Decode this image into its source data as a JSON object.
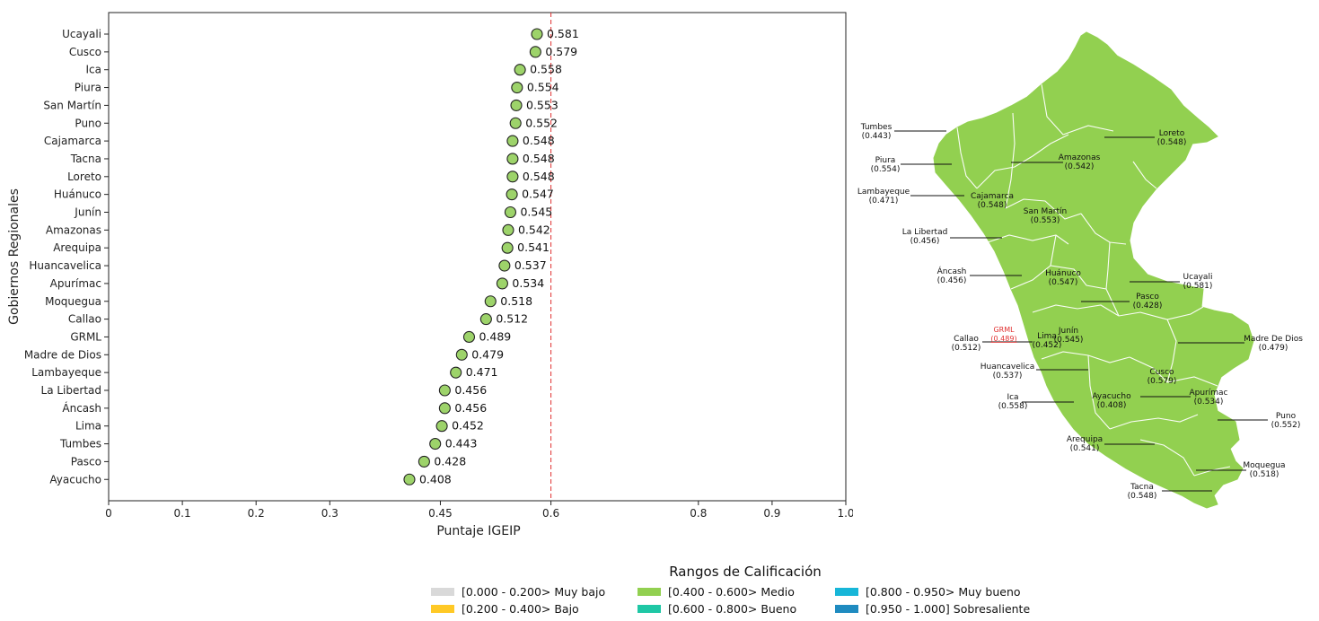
{
  "chart_data": [
    {
      "type": "scatter",
      "orientation": "horizontal",
      "xlabel": "Puntaje IGEIP",
      "ylabel": "Gobiernos Regionales",
      "xlim": [
        0,
        1.0
      ],
      "x_ticks": [
        "0",
        "0.1",
        "0.2",
        "0.3",
        "0.45",
        "0.6",
        "0.8",
        "0.9",
        "1.0"
      ],
      "x_tick_values": [
        0,
        0.1,
        0.2,
        0.3,
        0.45,
        0.6,
        0.8,
        0.9,
        1.0
      ],
      "reference_line": 0.6,
      "reference_line_style": "dashed red",
      "marker_color": "#9DD36A",
      "categories": [
        "Ucayali",
        "Cusco",
        "Ica",
        "Piura",
        "San Martín",
        "Puno",
        "Cajamarca",
        "Tacna",
        "Loreto",
        "Huánuco",
        "Junín",
        "Amazonas",
        "Arequipa",
        "Huancavelica",
        "Apurímac",
        "Moquegua",
        "Callao",
        "GRML",
        "Madre de Dios",
        "Lambayeque",
        "La Libertad",
        "Áncash",
        "Lima",
        "Tumbes",
        "Pasco",
        "Ayacucho"
      ],
      "values": [
        0.581,
        0.579,
        0.558,
        0.554,
        0.553,
        0.552,
        0.548,
        0.548,
        0.548,
        0.547,
        0.545,
        0.542,
        0.541,
        0.537,
        0.534,
        0.518,
        0.512,
        0.489,
        0.479,
        0.471,
        0.456,
        0.456,
        0.452,
        0.443,
        0.428,
        0.408
      ],
      "value_labels": [
        "0.581",
        "0.579",
        "0.558",
        "0.554",
        "0.553",
        "0.552",
        "0.548",
        "0.548",
        "0.548",
        "0.547",
        "0.545",
        "0.542",
        "0.541",
        "0.537",
        "0.534",
        "0.518",
        "0.512",
        "0.489",
        "0.479",
        "0.471",
        "0.456",
        "0.456",
        "0.452",
        "0.443",
        "0.428",
        "0.408"
      ]
    }
  ],
  "map": {
    "fill_color": "#92D050",
    "border_color": "#ffffff",
    "labels": [
      {
        "name": "Tumbes",
        "value": "(0.443)"
      },
      {
        "name": "Piura",
        "value": "(0.554)"
      },
      {
        "name": "Lambayeque",
        "value": "(0.471)"
      },
      {
        "name": "La Libertad",
        "value": "(0.456)"
      },
      {
        "name": "Áncash",
        "value": "(0.456)"
      },
      {
        "name": "Callao",
        "value": "(0.512)"
      },
      {
        "name": "GRML",
        "value": "(0.489)",
        "color": "#e03030"
      },
      {
        "name": "Lima",
        "value": "(0.452)"
      },
      {
        "name": "Huancavelica",
        "value": "(0.537)"
      },
      {
        "name": "Ica",
        "value": "(0.558)"
      },
      {
        "name": "Loreto",
        "value": "(0.548)"
      },
      {
        "name": "Amazonas",
        "value": "(0.542)"
      },
      {
        "name": "Cajamarca",
        "value": "(0.548)"
      },
      {
        "name": "San Martín",
        "value": "(0.553)"
      },
      {
        "name": "Huánuco",
        "value": "(0.547)"
      },
      {
        "name": "Ucayali",
        "value": "(0.581)"
      },
      {
        "name": "Pasco",
        "value": "(0.428)"
      },
      {
        "name": "Junín",
        "value": "(0.545)"
      },
      {
        "name": "Madre De Dios",
        "value": "(0.479)"
      },
      {
        "name": "Cusco",
        "value": "(0.579)"
      },
      {
        "name": "Apurímac",
        "value": "(0.534)"
      },
      {
        "name": "Ayacucho",
        "value": "(0.408)"
      },
      {
        "name": "Puno",
        "value": "(0.552)"
      },
      {
        "name": "Arequipa",
        "value": "(0.541)"
      },
      {
        "name": "Moquegua",
        "value": "(0.518)"
      },
      {
        "name": "Tacna",
        "value": "(0.548)"
      }
    ]
  },
  "legend": {
    "title": "Rangos de Calificación",
    "items": [
      {
        "label": "[0.000 - 0.200> Muy bajo",
        "color": "#D9D9D9"
      },
      {
        "label": "[0.400 - 0.600> Medio",
        "color": "#92D050"
      },
      {
        "label": "[0.800 - 0.950> Muy bueno",
        "color": "#17B6D8"
      },
      {
        "label": "[0.200 - 0.400> Bajo",
        "color": "#FFC926"
      },
      {
        "label": "[0.600 - 0.800> Bueno",
        "color": "#1FC7A5"
      },
      {
        "label": "[0.950 - 1.000] Sobresaliente",
        "color": "#1F8BC0"
      }
    ]
  }
}
